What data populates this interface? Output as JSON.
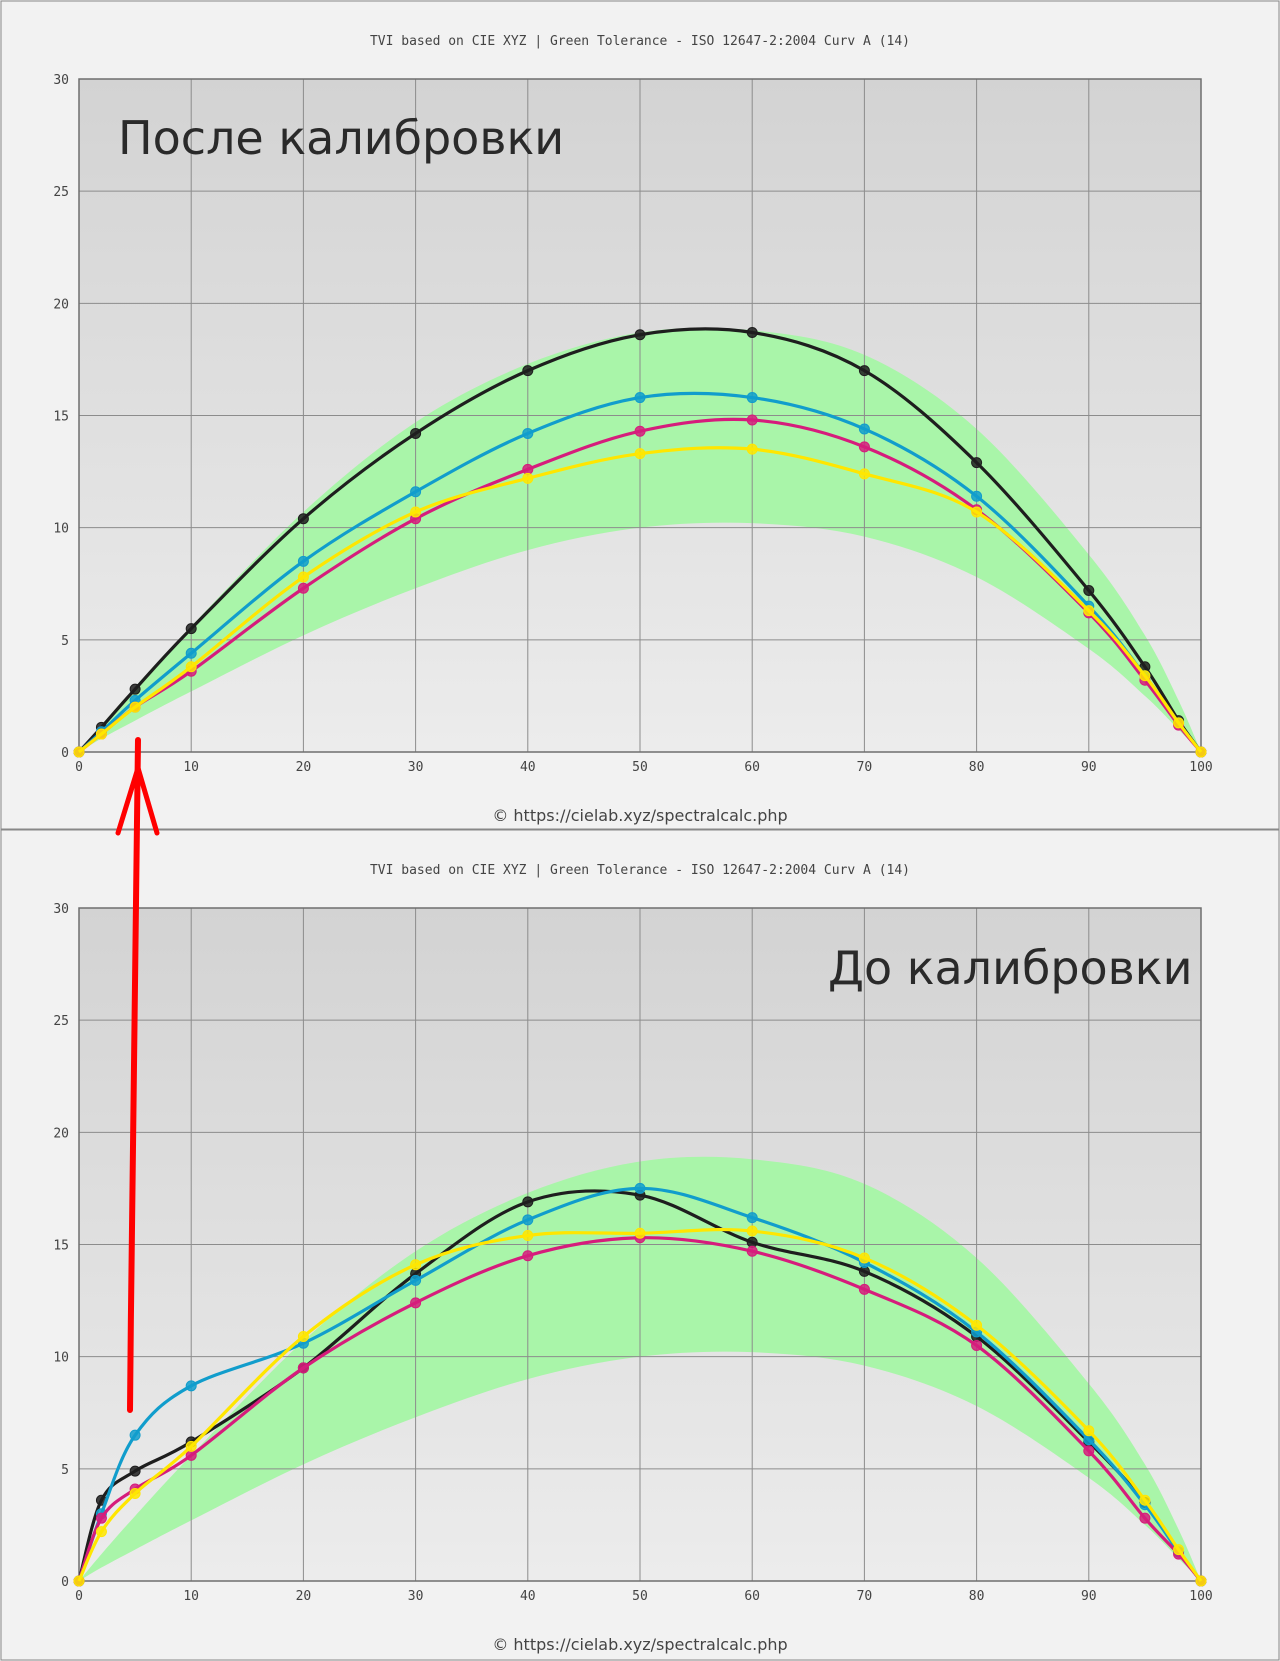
{
  "colors": {
    "page_bg": "#f2f2f2",
    "plot_bg": "#dcdcdc",
    "grid": "#8c8c8c",
    "tolerance": "#a9f5a9",
    "arrow": "#ff0000",
    "black": "#1e1e1e",
    "cyan": "#119dcc",
    "magenta": "#d61c7c",
    "yellow": "#ffe600"
  },
  "chart_data": [
    {
      "type": "line",
      "title": "TVI based on CIE XYZ  |  Green Tolerance - ISO 12647-2:2004 Curv A (14)",
      "overlay_label": "После калибровки",
      "credit": "© https://cielab.xyz/spectralcalc.php",
      "xlim": [
        0,
        100
      ],
      "ylim": [
        0,
        30
      ],
      "xticks": [
        0,
        10,
        20,
        30,
        40,
        50,
        60,
        70,
        80,
        90,
        100
      ],
      "yticks": [
        0,
        5,
        10,
        15,
        20,
        25,
        30
      ],
      "grid": true,
      "tolerance_band": {
        "x": [
          0,
          2,
          5,
          10,
          20,
          30,
          40,
          50,
          60,
          70,
          80,
          90,
          95,
          98,
          100
        ],
        "lower": [
          0,
          0.6,
          1.4,
          2.7,
          5.2,
          7.3,
          9.0,
          10.0,
          10.2,
          9.6,
          7.8,
          4.6,
          2.5,
          1.0,
          0
        ],
        "upper": [
          0,
          1.2,
          2.9,
          5.6,
          10.7,
          14.7,
          17.3,
          18.7,
          18.8,
          17.7,
          14.4,
          8.8,
          5.2,
          2.3,
          0
        ]
      },
      "series": [
        {
          "color": "black",
          "x": [
            0,
            2,
            5,
            10,
            20,
            30,
            40,
            50,
            60,
            70,
            80,
            90,
            95,
            98,
            100
          ],
          "y": [
            0,
            1.1,
            2.8,
            5.5,
            10.4,
            14.2,
            17.0,
            18.6,
            18.7,
            17.0,
            12.9,
            7.2,
            3.8,
            1.4,
            0
          ]
        },
        {
          "color": "cyan",
          "x": [
            0,
            2,
            5,
            10,
            20,
            30,
            40,
            50,
            60,
            70,
            80,
            90,
            95,
            98,
            100
          ],
          "y": [
            0,
            0.9,
            2.3,
            4.4,
            8.5,
            11.6,
            14.2,
            15.8,
            15.8,
            14.4,
            11.4,
            6.5,
            3.4,
            1.3,
            0
          ]
        },
        {
          "color": "magenta",
          "x": [
            0,
            2,
            5,
            10,
            20,
            30,
            40,
            50,
            60,
            70,
            80,
            90,
            95,
            98,
            100
          ],
          "y": [
            0,
            0.8,
            2.0,
            3.6,
            7.3,
            10.4,
            12.6,
            14.3,
            14.8,
            13.6,
            10.8,
            6.2,
            3.2,
            1.2,
            0
          ]
        },
        {
          "color": "yellow",
          "x": [
            0,
            2,
            5,
            10,
            20,
            30,
            40,
            50,
            60,
            70,
            80,
            90,
            95,
            98,
            100
          ],
          "y": [
            0,
            0.8,
            2.0,
            3.8,
            7.8,
            10.7,
            12.2,
            13.3,
            13.5,
            12.4,
            10.7,
            6.3,
            3.4,
            1.3,
            0
          ]
        }
      ]
    },
    {
      "type": "line",
      "title": "TVI based on CIE XYZ  |  Green Tolerance - ISO 12647-2:2004 Curv A (14)",
      "overlay_label": "До калибровки",
      "credit": "© https://cielab.xyz/spectralcalc.php",
      "xlim": [
        0,
        100
      ],
      "ylim": [
        0,
        30
      ],
      "xticks": [
        0,
        10,
        20,
        30,
        40,
        50,
        60,
        70,
        80,
        90,
        100
      ],
      "yticks": [
        0,
        5,
        10,
        15,
        20,
        25,
        30
      ],
      "grid": true,
      "tolerance_band": {
        "x": [
          0,
          2,
          5,
          10,
          20,
          30,
          40,
          50,
          60,
          70,
          80,
          90,
          95,
          98,
          100
        ],
        "lower": [
          0,
          0.6,
          1.4,
          2.7,
          5.2,
          7.3,
          9.0,
          10.0,
          10.2,
          9.6,
          7.8,
          4.6,
          2.5,
          1.0,
          0
        ],
        "upper": [
          0,
          1.2,
          2.9,
          5.6,
          10.7,
          14.7,
          17.3,
          18.7,
          18.8,
          17.7,
          14.4,
          8.8,
          5.2,
          2.3,
          0
        ]
      },
      "series": [
        {
          "color": "black",
          "x": [
            0,
            2,
            5,
            10,
            20,
            30,
            40,
            50,
            60,
            70,
            80,
            90,
            95,
            98,
            100
          ],
          "y": [
            0,
            3.6,
            4.9,
            6.2,
            9.5,
            13.7,
            16.9,
            17.2,
            15.1,
            13.8,
            10.9,
            6.2,
            3.5,
            1.3,
            0
          ]
        },
        {
          "color": "cyan",
          "x": [
            0,
            2,
            5,
            10,
            20,
            30,
            40,
            50,
            60,
            70,
            80,
            90,
            95,
            98,
            100
          ],
          "y": [
            0,
            3.0,
            6.5,
            8.7,
            10.6,
            13.4,
            16.1,
            17.5,
            16.2,
            14.2,
            11.1,
            6.3,
            3.4,
            1.3,
            0
          ]
        },
        {
          "color": "magenta",
          "x": [
            0,
            2,
            5,
            10,
            20,
            30,
            40,
            50,
            60,
            70,
            80,
            90,
            95,
            98,
            100
          ],
          "y": [
            0,
            2.8,
            4.1,
            5.6,
            9.5,
            12.4,
            14.5,
            15.3,
            14.7,
            13.0,
            10.5,
            5.8,
            2.8,
            1.2,
            0
          ]
        },
        {
          "color": "yellow",
          "x": [
            0,
            2,
            5,
            10,
            20,
            30,
            40,
            50,
            60,
            70,
            80,
            90,
            95,
            98,
            100
          ],
          "y": [
            0,
            2.2,
            3.9,
            6.0,
            10.9,
            14.1,
            15.4,
            15.5,
            15.6,
            14.4,
            11.4,
            6.7,
            3.6,
            1.4,
            0
          ]
        }
      ]
    }
  ]
}
